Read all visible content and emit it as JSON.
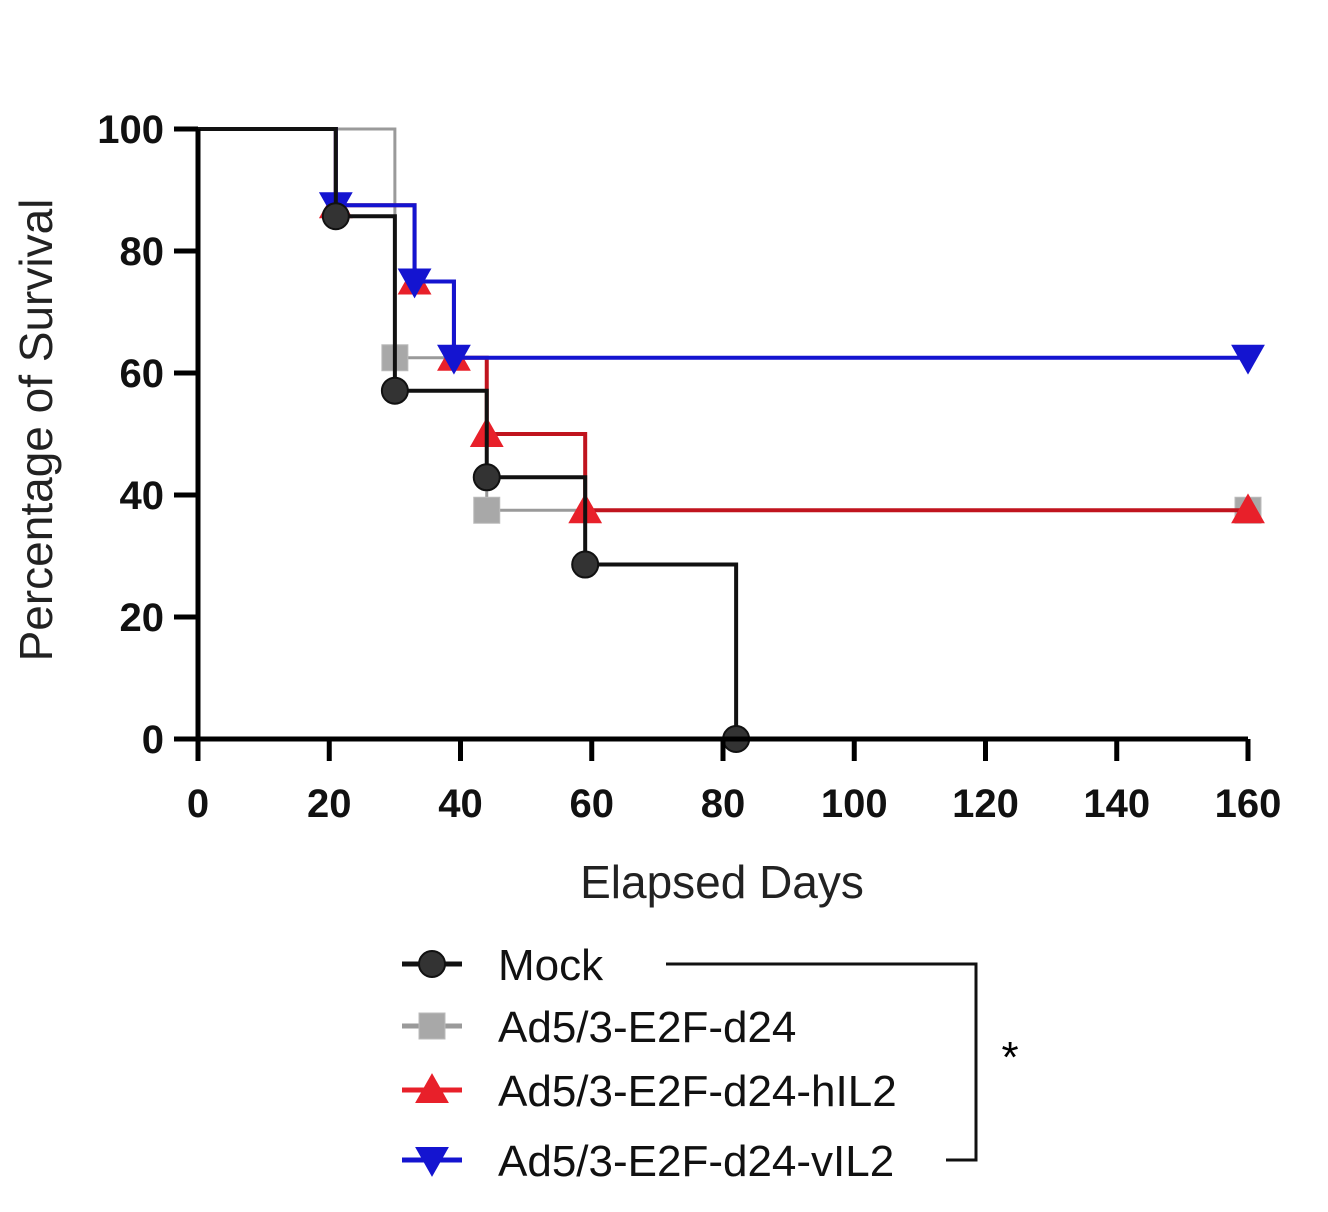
{
  "chart_data": {
    "type": "line",
    "subtype": "kaplan-meier step",
    "title": "",
    "xlabel": "Elapsed Days",
    "ylabel": "Percentage of Survival",
    "xlim": [
      0,
      160
    ],
    "ylim": [
      0,
      100
    ],
    "xticks": [
      "0",
      "20",
      "40",
      "60",
      "80",
      "100",
      "120",
      "140",
      "160"
    ],
    "yticks": [
      "0",
      "20",
      "40",
      "60",
      "80",
      "100"
    ],
    "grid": false,
    "legend_placement": "bottom",
    "series": [
      {
        "name": "Mock",
        "color": "#111111",
        "marker": "circle",
        "steps": [
          [
            0,
            100
          ],
          [
            21,
            85.7
          ],
          [
            30,
            57.1
          ],
          [
            44,
            42.9
          ],
          [
            59,
            28.6
          ],
          [
            82,
            0
          ]
        ],
        "markers": [
          [
            21,
            85.7
          ],
          [
            30,
            57.1
          ],
          [
            44,
            42.9
          ],
          [
            59,
            28.6
          ],
          [
            82,
            0
          ]
        ]
      },
      {
        "name": "Ad5/3-E2F-d24",
        "color": "#9a9a9a",
        "marker": "square",
        "steps": [
          [
            0,
            100
          ],
          [
            30,
            62.5
          ],
          [
            44,
            37.5
          ],
          [
            160,
            37.5
          ]
        ],
        "markers": [
          [
            30,
            62.5
          ],
          [
            44,
            37.5
          ],
          [
            160,
            37.5
          ]
        ]
      },
      {
        "name": "Ad5/3-E2F-d24-hIL2",
        "color": "#e8202a",
        "marker": "triangle-up",
        "steps": [
          [
            0,
            100
          ],
          [
            21,
            87.5
          ],
          [
            33,
            75
          ],
          [
            39,
            62.5
          ],
          [
            44,
            50
          ],
          [
            59,
            37.5
          ],
          [
            160,
            37.5
          ]
        ],
        "markers": [
          [
            21,
            87.5
          ],
          [
            33,
            75
          ],
          [
            39,
            62.5
          ],
          [
            44,
            50
          ],
          [
            59,
            37.5
          ],
          [
            160,
            37.5
          ]
        ]
      },
      {
        "name": "Ad5/3-E2F-d24-vIL2",
        "color": "#1414d0",
        "marker": "triangle-down",
        "steps": [
          [
            0,
            100
          ],
          [
            21,
            87.5
          ],
          [
            33,
            75
          ],
          [
            39,
            62.5
          ],
          [
            160,
            62.5
          ]
        ],
        "markers": [
          [
            21,
            87.5
          ],
          [
            33,
            75
          ],
          [
            39,
            62.5
          ],
          [
            160,
            62.5
          ]
        ]
      }
    ],
    "annotations": [
      {
        "text": "*",
        "type": "significance bracket",
        "between": [
          "Mock",
          "Ad5/3-E2F-d24-vIL2"
        ]
      }
    ]
  }
}
